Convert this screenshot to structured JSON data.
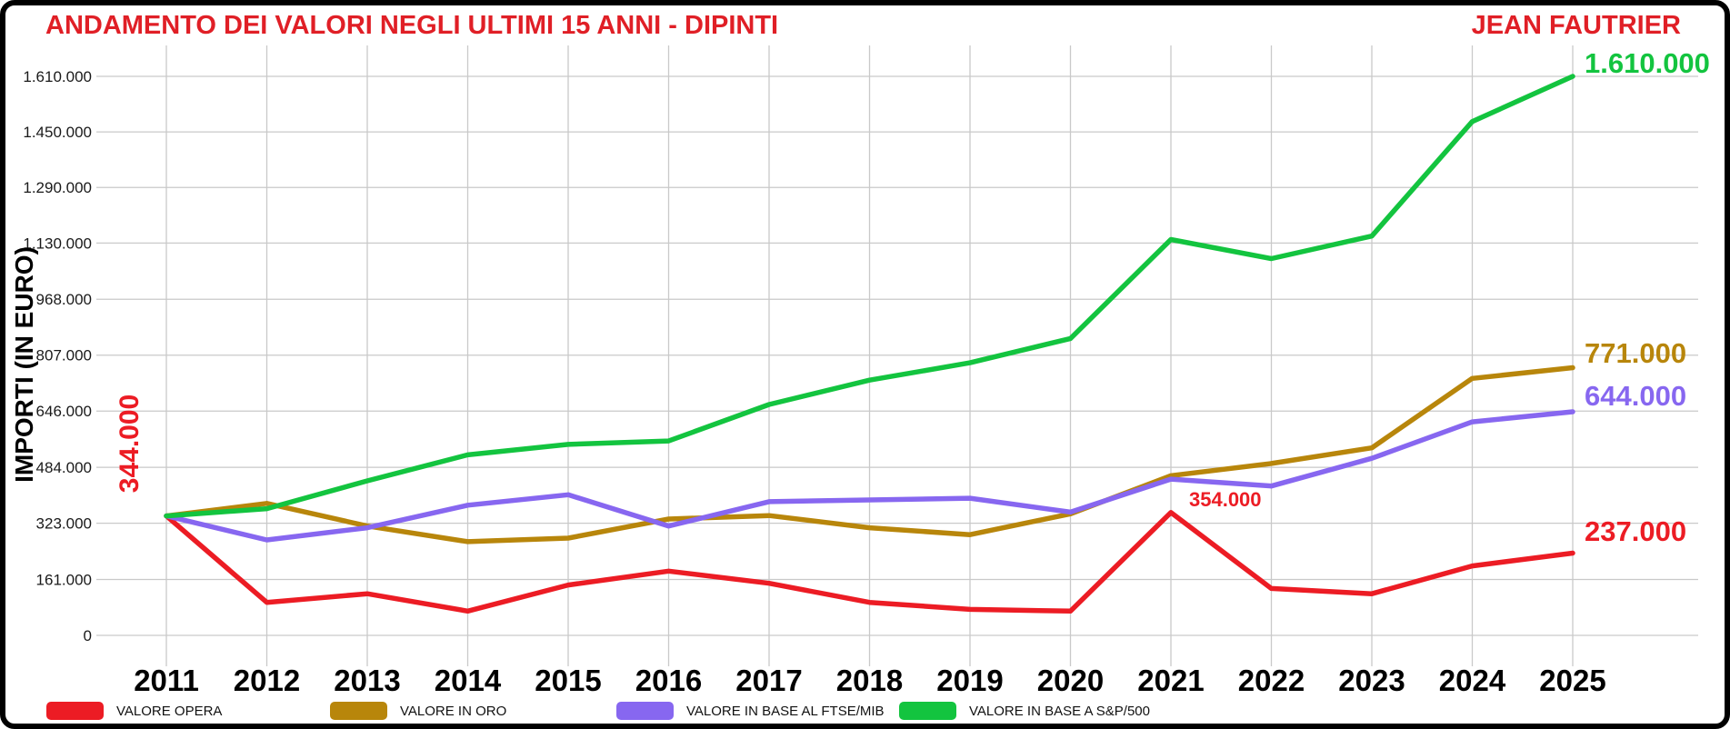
{
  "header": {
    "title": "ANDAMENTO DEI VALORI NEGLI ULTIMI 15 ANNI - DIPINTI",
    "artist": "JEAN FAUTRIER",
    "text_color": "#e01f26"
  },
  "colors": {
    "red": "#ec1c24",
    "gold": "#b8860b",
    "purple": "#8767f0",
    "green": "#13c43f",
    "gridline": "#c9c9c9",
    "axis_text": "#1a1a1a"
  },
  "chart_data": {
    "type": "line",
    "title": "ANDAMENTO DEI VALORI NEGLI ULTIMI 15 ANNI - DIPINTI",
    "ylabel": "IMPORTI (IN EURO)",
    "grid": true,
    "legend_position": "bottom",
    "x": [
      2011,
      2012,
      2013,
      2014,
      2015,
      2016,
      2017,
      2018,
      2019,
      2020,
      2021,
      2022,
      2023,
      2024,
      2025
    ],
    "x_labels": [
      "2011",
      "2012",
      "2013",
      "2014",
      "2015",
      "2016",
      "2017",
      "2018",
      "2019",
      "2020",
      "2021",
      "2022",
      "2023",
      "2024",
      "2025"
    ],
    "ylim": [
      0,
      1610000
    ],
    "y_ticks": [
      {
        "label": "0",
        "value": 0
      },
      {
        "label": "161.000",
        "value": 161000
      },
      {
        "label": "323.000",
        "value": 323000
      },
      {
        "label": "484.000",
        "value": 484000
      },
      {
        "label": "646.000",
        "value": 646000
      },
      {
        "label": "807.000",
        "value": 807000
      },
      {
        "label": "968.000",
        "value": 968000
      },
      {
        "label": "1.130.000",
        "value": 1130000
      },
      {
        "label": "1.290.000",
        "value": 1290000
      },
      {
        "label": "1.450.000",
        "value": 1450000
      },
      {
        "label": "1.610.000",
        "value": 1610000
      }
    ],
    "series": [
      {
        "name": "VALORE OPERA",
        "color": "#ec1c24",
        "values": [
          344000,
          95000,
          120000,
          70000,
          145000,
          185000,
          150000,
          95000,
          75000,
          70000,
          354000,
          135000,
          120000,
          200000,
          237000
        ]
      },
      {
        "name": "VALORE IN ORO",
        "color": "#b8860b",
        "values": [
          344000,
          380000,
          315000,
          270000,
          280000,
          335000,
          345000,
          310000,
          290000,
          350000,
          460000,
          495000,
          540000,
          740000,
          771000
        ]
      },
      {
        "name": "VALORE IN BASE AL FTSE/MIB",
        "color": "#8767f0",
        "values": [
          344000,
          275000,
          310000,
          375000,
          405000,
          315000,
          385000,
          390000,
          395000,
          355000,
          450000,
          430000,
          510000,
          615000,
          644000
        ]
      },
      {
        "name": "VALORE IN BASE A S&P/500",
        "color": "#13c43f",
        "values": [
          344000,
          365000,
          445000,
          520000,
          550000,
          560000,
          665000,
          735000,
          785000,
          855000,
          1140000,
          1085000,
          1150000,
          1480000,
          1610000
        ]
      }
    ],
    "annotations": {
      "start_value": {
        "text": "344.000",
        "color": "#ec1c24"
      },
      "red_peak_2021": {
        "text": "354.000",
        "color": "#ec1c24"
      },
      "end_values": [
        {
          "series": "VALORE IN BASE A S&P/500",
          "text": "1.610.000",
          "color": "#13c43f"
        },
        {
          "series": "VALORE IN ORO",
          "text": "771.000",
          "color": "#b8860b"
        },
        {
          "series": "VALORE IN BASE AL FTSE/MIB",
          "text": "644.000",
          "color": "#8767f0"
        },
        {
          "series": "VALORE OPERA",
          "text": "237.000",
          "color": "#ec1c24"
        }
      ]
    }
  }
}
